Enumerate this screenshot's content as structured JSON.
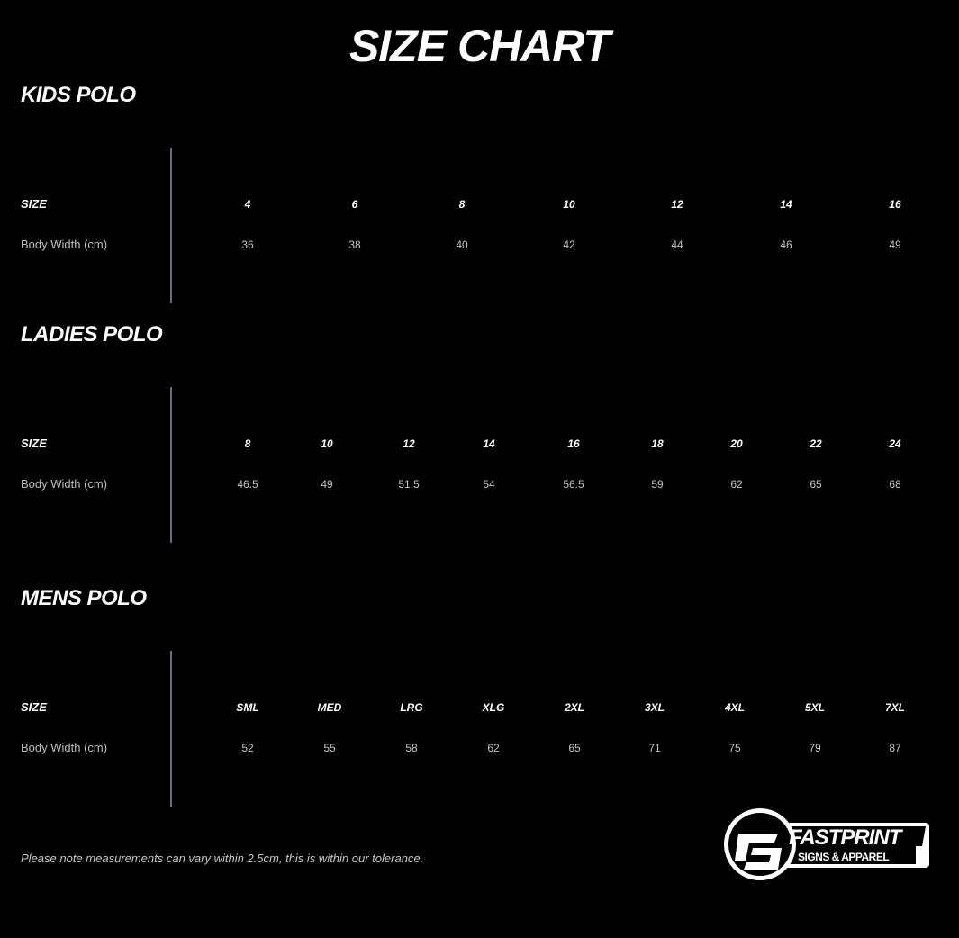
{
  "title": "SIZE CHART",
  "sections": [
    {
      "title": "KIDS POLO",
      "size_label": "SIZE",
      "measure_label": "Body Width (cm)",
      "sizes": [
        "4",
        "6",
        "8",
        "10",
        "12",
        "14",
        "16"
      ],
      "values": [
        "36",
        "38",
        "40",
        "42",
        "44",
        "46",
        "49"
      ]
    },
    {
      "title": "LADIES POLO",
      "size_label": "SIZE",
      "measure_label": "Body Width (cm)",
      "sizes": [
        "8",
        "10",
        "12",
        "14",
        "16",
        "18",
        "20",
        "22",
        "24"
      ],
      "values": [
        "46.5",
        "49",
        "51.5",
        "54",
        "56.5",
        "59",
        "62",
        "65",
        "68"
      ]
    },
    {
      "title": "MENS POLO",
      "size_label": "SIZE",
      "measure_label": "Body Width (cm)",
      "sizes": [
        "SML",
        "MED",
        "LRG",
        "XLG",
        "2XL",
        "3XL",
        "4XL",
        "5XL",
        "7XL"
      ],
      "values": [
        "52",
        "55",
        "58",
        "62",
        "65",
        "71",
        "75",
        "79",
        "87"
      ]
    }
  ],
  "note": "Please note measurements can vary within 2.5cm, this is within our tolerance.",
  "logo": {
    "name": "FASTPRINT",
    "tagline": "SIGNS & APPAREL"
  }
}
